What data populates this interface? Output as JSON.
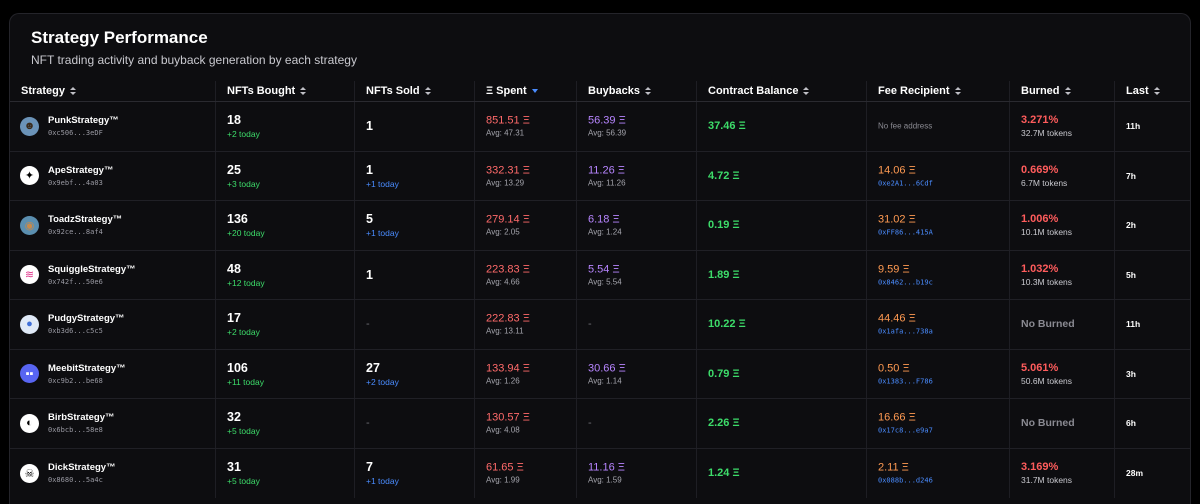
{
  "header": {
    "title": "Strategy Performance",
    "subtitle": "NFT trading activity and buyback generation by each strategy"
  },
  "columns": [
    "Strategy",
    "NFTs Bought",
    "NFTs Sold",
    "Ξ Spent",
    "Buybacks",
    "Contract Balance",
    "Fee Recipient",
    "Burned",
    "Last"
  ],
  "sorted_column": "Ξ Spent",
  "colors": {
    "green": "#3ddc6a",
    "blue": "#4a8cff",
    "red": "#ff6a6a",
    "purple": "#b785ff",
    "orange": "#ff9a52"
  },
  "rows": [
    {
      "name": "PunkStrategy™",
      "addr": "0xc506...3eDF",
      "icon": "punk-avatar-icon",
      "bought": "18",
      "bought_today": "+2 today",
      "sold": "1",
      "sold_today": "",
      "spent": "851.51 Ξ",
      "spent_avg": "Avg: 47.31",
      "buyback": "56.39 Ξ",
      "buyback_avg": "Avg: 56.39",
      "balance": "37.46 Ξ",
      "fee": "",
      "fee_addr": "",
      "no_fee": "No fee address",
      "burned": "3.271%",
      "tokens": "32.7M tokens",
      "no_burn": "",
      "last": "11h"
    },
    {
      "name": "ApeStrategy™",
      "addr": "0x9ebf...4a03",
      "icon": "ape-avatar-icon",
      "bought": "25",
      "bought_today": "+3 today",
      "sold": "1",
      "sold_today": "+1 today",
      "spent": "332.31 Ξ",
      "spent_avg": "Avg: 13.29",
      "buyback": "11.26 Ξ",
      "buyback_avg": "Avg: 11.26",
      "balance": "4.72 Ξ",
      "fee": "14.06 Ξ",
      "fee_addr": "0xe2A1...6Cdf",
      "no_fee": "",
      "burned": "0.669%",
      "tokens": "6.7M tokens",
      "no_burn": "",
      "last": "7h"
    },
    {
      "name": "ToadzStrategy™",
      "addr": "0x92ce...8af4",
      "icon": "toadz-avatar-icon",
      "bought": "136",
      "bought_today": "+20 today",
      "sold": "5",
      "sold_today": "+1 today",
      "spent": "279.14 Ξ",
      "spent_avg": "Avg: 2.05",
      "buyback": "6.18 Ξ",
      "buyback_avg": "Avg: 1.24",
      "balance": "0.19 Ξ",
      "fee": "31.02 Ξ",
      "fee_addr": "0xFF86...415A",
      "no_fee": "",
      "burned": "1.006%",
      "tokens": "10.1M tokens",
      "no_burn": "",
      "last": "2h"
    },
    {
      "name": "SquiggleStrategy™",
      "addr": "0x742f...50e6",
      "icon": "squiggle-avatar-icon",
      "bought": "48",
      "bought_today": "+12 today",
      "sold": "1",
      "sold_today": "",
      "spent": "223.83 Ξ",
      "spent_avg": "Avg: 4.66",
      "buyback": "5.54 Ξ",
      "buyback_avg": "Avg: 5.54",
      "balance": "1.89 Ξ",
      "fee": "9.59 Ξ",
      "fee_addr": "0x8462...b19c",
      "no_fee": "",
      "burned": "1.032%",
      "tokens": "10.3M tokens",
      "no_burn": "",
      "last": "5h"
    },
    {
      "name": "PudgyStrategy™",
      "addr": "0xb3d6...c5c5",
      "icon": "pudgy-avatar-icon",
      "bought": "17",
      "bought_today": "+2 today",
      "sold": "-",
      "sold_today": "",
      "spent": "222.83 Ξ",
      "spent_avg": "Avg: 13.11",
      "buyback": "-",
      "buyback_avg": "",
      "balance": "10.22 Ξ",
      "fee": "44.46 Ξ",
      "fee_addr": "0x1afa...738a",
      "no_fee": "",
      "burned": "",
      "tokens": "",
      "no_burn": "No Burned",
      "last": "11h"
    },
    {
      "name": "MeebitStrategy™",
      "addr": "0xc9b2...be68",
      "icon": "meebit-avatar-icon",
      "bought": "106",
      "bought_today": "+11 today",
      "sold": "27",
      "sold_today": "+2 today",
      "spent": "133.94 Ξ",
      "spent_avg": "Avg: 1.26",
      "buyback": "30.66 Ξ",
      "buyback_avg": "Avg: 1.14",
      "balance": "0.79 Ξ",
      "fee": "0.50 Ξ",
      "fee_addr": "0x1383...F786",
      "no_fee": "",
      "burned": "5.061%",
      "tokens": "50.6M tokens",
      "no_burn": "",
      "last": "3h"
    },
    {
      "name": "BirbStrategy™",
      "addr": "0x6bcb...58e8",
      "icon": "birb-avatar-icon",
      "bought": "32",
      "bought_today": "+5 today",
      "sold": "-",
      "sold_today": "",
      "spent": "130.57 Ξ",
      "spent_avg": "Avg: 4.08",
      "buyback": "-",
      "buyback_avg": "",
      "balance": "2.26 Ξ",
      "fee": "16.66 Ξ",
      "fee_addr": "0x17c8...e9a7",
      "no_fee": "",
      "burned": "",
      "tokens": "",
      "no_burn": "No Burned",
      "last": "6h"
    },
    {
      "name": "DickStrategy™",
      "addr": "0x8680...5a4c",
      "icon": "dick-avatar-icon",
      "bought": "31",
      "bought_today": "+5 today",
      "sold": "7",
      "sold_today": "+1 today",
      "spent": "61.65 Ξ",
      "spent_avg": "Avg: 1.99",
      "buyback": "11.16 Ξ",
      "buyback_avg": "Avg: 1.59",
      "balance": "1.24 Ξ",
      "fee": "2.11 Ξ",
      "fee_addr": "0x088b...d246",
      "no_fee": "",
      "burned": "3.169%",
      "tokens": "31.7M tokens",
      "no_burn": "",
      "last": "28m"
    }
  ]
}
